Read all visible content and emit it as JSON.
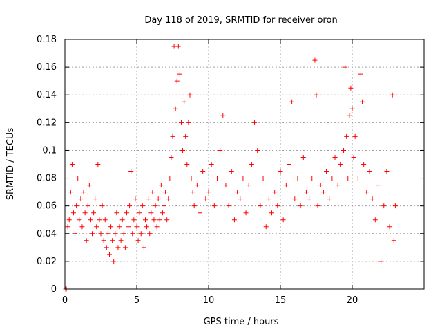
{
  "chart_data": {
    "type": "scatter",
    "title": "Day 118 of 2019, SRMTID for receiver oron",
    "xlabel": "GPS time / hours",
    "ylabel": "SRMTID / TECUs",
    "xlim": [
      0,
      25
    ],
    "ylim": [
      0,
      0.18
    ],
    "x_ticks": [
      0,
      5,
      10,
      15,
      20
    ],
    "x_tick_labels": [
      "0",
      "5",
      "10",
      "15",
      "20"
    ],
    "y_ticks": [
      0,
      0.02,
      0.04,
      0.06,
      0.08,
      0.1,
      0.12,
      0.14,
      0.16,
      0.18
    ],
    "y_tick_labels": [
      "0",
      "0.02",
      "0.04",
      "0.06",
      "0.08",
      "0.1",
      "0.12",
      "0.14",
      "0.16",
      "0.18"
    ],
    "grid": true,
    "marker": "+",
    "series": [
      {
        "name": "SRMTID",
        "color": "#ff0000",
        "points": [
          [
            0.05,
            0.0
          ],
          [
            0.1,
            0.0
          ],
          [
            0.2,
            0.045
          ],
          [
            0.3,
            0.05
          ],
          [
            0.4,
            0.07
          ],
          [
            0.5,
            0.09
          ],
          [
            0.6,
            0.055
          ],
          [
            0.7,
            0.04
          ],
          [
            0.8,
            0.06
          ],
          [
            0.9,
            0.08
          ],
          [
            1.0,
            0.05
          ],
          [
            1.1,
            0.065
          ],
          [
            1.2,
            0.045
          ],
          [
            1.3,
            0.07
          ],
          [
            1.4,
            0.055
          ],
          [
            1.5,
            0.035
          ],
          [
            1.6,
            0.06
          ],
          [
            1.7,
            0.075
          ],
          [
            1.8,
            0.05
          ],
          [
            1.9,
            0.04
          ],
          [
            2.0,
            0.055
          ],
          [
            2.1,
            0.065
          ],
          [
            2.2,
            0.045
          ],
          [
            2.3,
            0.09
          ],
          [
            2.4,
            0.05
          ],
          [
            2.5,
            0.04
          ],
          [
            2.6,
            0.06
          ],
          [
            2.7,
            0.035
          ],
          [
            2.8,
            0.05
          ],
          [
            2.9,
            0.03
          ],
          [
            3.0,
            0.04
          ],
          [
            3.1,
            0.025
          ],
          [
            3.2,
            0.045
          ],
          [
            3.3,
            0.035
          ],
          [
            3.4,
            0.02
          ],
          [
            3.5,
            0.04
          ],
          [
            3.6,
            0.055
          ],
          [
            3.7,
            0.03
          ],
          [
            3.8,
            0.045
          ],
          [
            3.9,
            0.035
          ],
          [
            4.0,
            0.05
          ],
          [
            4.1,
            0.04
          ],
          [
            4.2,
            0.03
          ],
          [
            4.3,
            0.055
          ],
          [
            4.4,
            0.045
          ],
          [
            4.5,
            0.06
          ],
          [
            4.6,
            0.085
          ],
          [
            4.7,
            0.04
          ],
          [
            4.8,
            0.05
          ],
          [
            4.9,
            0.065
          ],
          [
            5.0,
            0.045
          ],
          [
            5.1,
            0.035
          ],
          [
            5.2,
            0.055
          ],
          [
            5.3,
            0.04
          ],
          [
            5.4,
            0.06
          ],
          [
            5.5,
            0.03
          ],
          [
            5.6,
            0.05
          ],
          [
            5.7,
            0.045
          ],
          [
            5.8,
            0.065
          ],
          [
            5.9,
            0.04
          ],
          [
            6.0,
            0.055
          ],
          [
            6.1,
            0.07
          ],
          [
            6.2,
            0.05
          ],
          [
            6.3,
            0.06
          ],
          [
            6.4,
            0.045
          ],
          [
            6.5,
            0.065
          ],
          [
            6.6,
            0.05
          ],
          [
            6.7,
            0.075
          ],
          [
            6.8,
            0.055
          ],
          [
            6.9,
            0.06
          ],
          [
            7.0,
            0.07
          ],
          [
            7.1,
            0.05
          ],
          [
            7.2,
            0.065
          ],
          [
            7.3,
            0.08
          ],
          [
            7.4,
            0.095
          ],
          [
            7.5,
            0.11
          ],
          [
            7.6,
            0.175
          ],
          [
            7.7,
            0.13
          ],
          [
            7.8,
            0.15
          ],
          [
            7.9,
            0.175
          ],
          [
            8.0,
            0.155
          ],
          [
            8.1,
            0.12
          ],
          [
            8.2,
            0.1
          ],
          [
            8.3,
            0.135
          ],
          [
            8.4,
            0.11
          ],
          [
            8.5,
            0.09
          ],
          [
            8.6,
            0.12
          ],
          [
            8.7,
            0.14
          ],
          [
            8.8,
            0.08
          ],
          [
            8.9,
            0.07
          ],
          [
            9.0,
            0.06
          ],
          [
            9.2,
            0.075
          ],
          [
            9.4,
            0.055
          ],
          [
            9.6,
            0.085
          ],
          [
            9.8,
            0.065
          ],
          [
            10.0,
            0.07
          ],
          [
            10.2,
            0.09
          ],
          [
            10.4,
            0.06
          ],
          [
            10.6,
            0.08
          ],
          [
            10.8,
            0.1
          ],
          [
            11.0,
            0.125
          ],
          [
            11.2,
            0.075
          ],
          [
            11.4,
            0.06
          ],
          [
            11.6,
            0.085
          ],
          [
            11.8,
            0.05
          ],
          [
            12.0,
            0.07
          ],
          [
            12.2,
            0.065
          ],
          [
            12.4,
            0.08
          ],
          [
            12.6,
            0.055
          ],
          [
            12.8,
            0.075
          ],
          [
            13.0,
            0.09
          ],
          [
            13.2,
            0.12
          ],
          [
            13.4,
            0.1
          ],
          [
            13.6,
            0.06
          ],
          [
            13.8,
            0.08
          ],
          [
            14.0,
            0.045
          ],
          [
            14.2,
            0.065
          ],
          [
            14.4,
            0.055
          ],
          [
            14.6,
            0.07
          ],
          [
            14.8,
            0.06
          ],
          [
            15.0,
            0.085
          ],
          [
            15.2,
            0.05
          ],
          [
            15.4,
            0.075
          ],
          [
            15.6,
            0.09
          ],
          [
            15.8,
            0.135
          ],
          [
            16.0,
            0.065
          ],
          [
            16.2,
            0.08
          ],
          [
            16.4,
            0.06
          ],
          [
            16.6,
            0.095
          ],
          [
            16.8,
            0.07
          ],
          [
            17.0,
            0.065
          ],
          [
            17.2,
            0.08
          ],
          [
            17.4,
            0.165
          ],
          [
            17.5,
            0.14
          ],
          [
            17.6,
            0.06
          ],
          [
            17.8,
            0.075
          ],
          [
            18.0,
            0.07
          ],
          [
            18.2,
            0.085
          ],
          [
            18.4,
            0.065
          ],
          [
            18.6,
            0.08
          ],
          [
            18.8,
            0.095
          ],
          [
            19.0,
            0.075
          ],
          [
            19.2,
            0.09
          ],
          [
            19.4,
            0.1
          ],
          [
            19.5,
            0.16
          ],
          [
            19.6,
            0.11
          ],
          [
            19.7,
            0.08
          ],
          [
            19.8,
            0.125
          ],
          [
            19.9,
            0.145
          ],
          [
            20.0,
            0.13
          ],
          [
            20.1,
            0.095
          ],
          [
            20.2,
            0.11
          ],
          [
            20.4,
            0.08
          ],
          [
            20.6,
            0.155
          ],
          [
            20.7,
            0.135
          ],
          [
            20.8,
            0.09
          ],
          [
            21.0,
            0.07
          ],
          [
            21.2,
            0.085
          ],
          [
            21.4,
            0.065
          ],
          [
            21.6,
            0.05
          ],
          [
            21.8,
            0.075
          ],
          [
            22.0,
            0.02
          ],
          [
            22.2,
            0.06
          ],
          [
            22.4,
            0.085
          ],
          [
            22.6,
            0.045
          ],
          [
            22.8,
            0.14
          ],
          [
            22.9,
            0.035
          ],
          [
            23.0,
            0.06
          ]
        ]
      }
    ]
  }
}
